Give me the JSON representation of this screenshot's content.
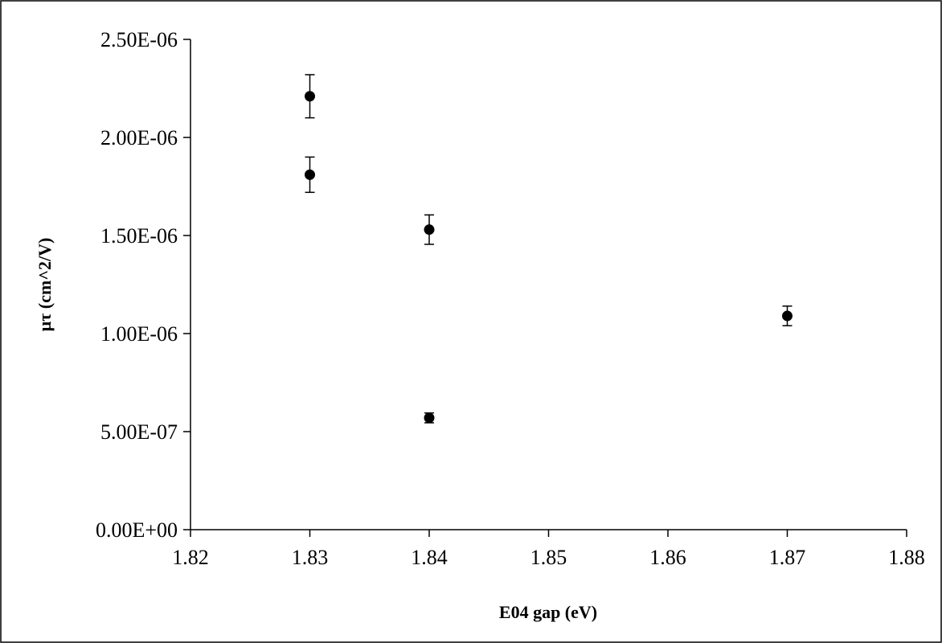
{
  "chart_data": {
    "type": "scatter",
    "title": "",
    "xlabel": "E04 gap (eV)",
    "ylabel": "μτ (cm^2/V)",
    "xlim": [
      1.82,
      1.88
    ],
    "ylim": [
      0,
      2.5e-06
    ],
    "x_ticks": [
      "1.82",
      "1.83",
      "1.84",
      "1.85",
      "1.86",
      "1.87",
      "1.88"
    ],
    "y_ticks": [
      "0.00E+00",
      "5.00E-07",
      "1.00E-06",
      "1.50E-06",
      "2.00E-06",
      "2.50E-06"
    ],
    "grid": false,
    "legend": "none",
    "marker_color": "#000000",
    "points": [
      {
        "x": 1.83,
        "y": 2.21e-06,
        "err": 1.1e-07
      },
      {
        "x": 1.83,
        "y": 1.81e-06,
        "err": 9e-08
      },
      {
        "x": 1.84,
        "y": 1.53e-06,
        "err": 7.5e-08
      },
      {
        "x": 1.84,
        "y": 5.7e-07,
        "err": 2.5e-08
      },
      {
        "x": 1.87,
        "y": 1.09e-06,
        "err": 5e-08
      }
    ]
  }
}
